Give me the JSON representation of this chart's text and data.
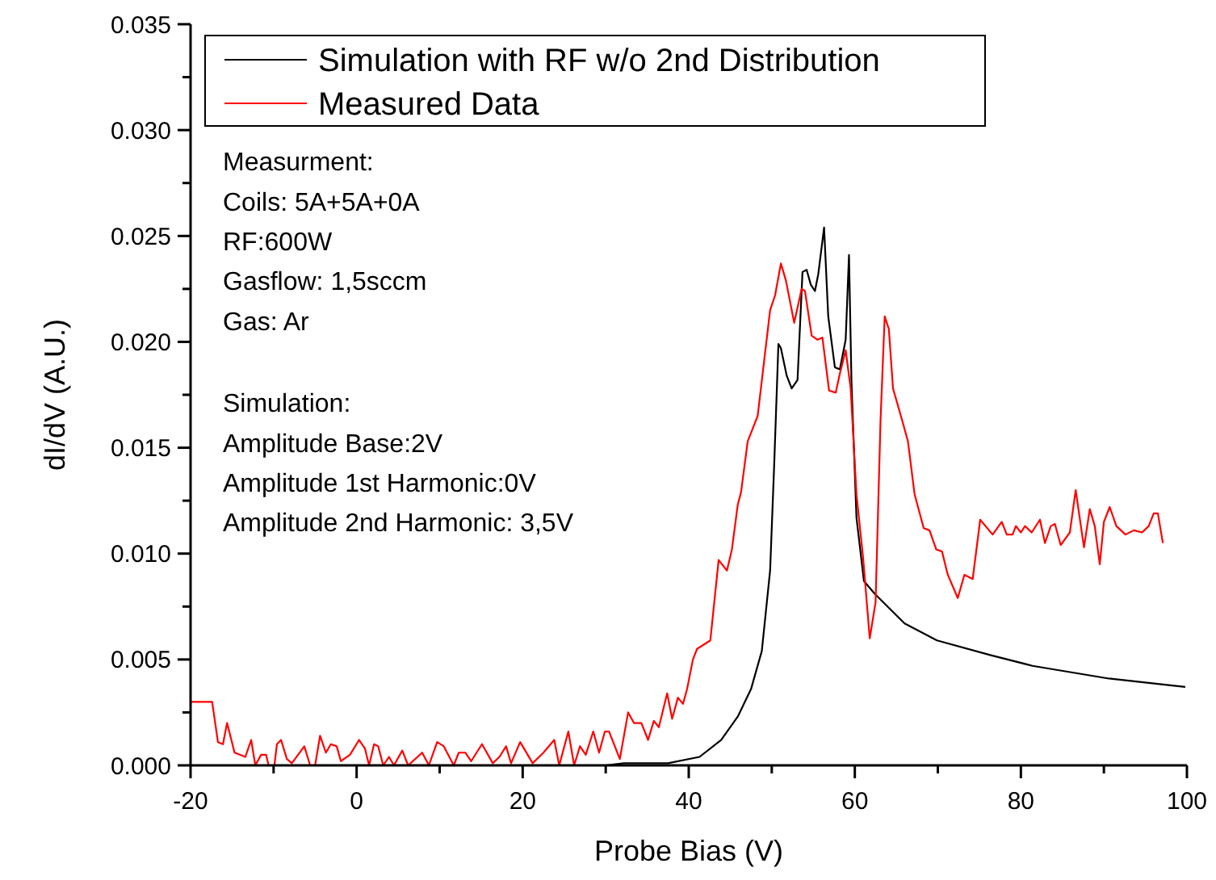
{
  "chart_data": {
    "type": "line",
    "xlabel": "Probe Bias (V)",
    "ylabel": "dI/dV (A.U.)",
    "xlim": [
      -20,
      100
    ],
    "xticks": [
      -20,
      0,
      20,
      40,
      60,
      80,
      100
    ],
    "ylim": [
      0,
      0.035
    ],
    "yticks": [
      {
        "value": 0,
        "label": "0.000"
      },
      {
        "value": 0.005,
        "label": "0.005"
      },
      {
        "value": 0.01,
        "label": "0.010"
      },
      {
        "value": 0.015,
        "label": "0.015"
      },
      {
        "value": 0.02,
        "label": "0.020"
      },
      {
        "value": 0.025,
        "label": "0.025"
      },
      {
        "value": 0.03,
        "label": "0.030"
      },
      {
        "value": 0.035,
        "label": "0.035"
      }
    ],
    "grid": false,
    "legend": "top left",
    "marker": "none",
    "line_style": "solid",
    "annotations": [
      "Measurment:\nCoils: 5A+5A+0A\nRF:600W\nGasflow: 1,5sccm\nGas: Ar",
      "Simulation:\nAmplitude Base:2V\nAmplitude 1st Harmonic:0V\nAmplitude 2nd Harmonic: 3,5V"
    ],
    "series": [
      {
        "name": "Simulation with RF w/o 2nd Distribution",
        "color": "#000000",
        "x": [
          -20,
          0,
          20,
          30,
          32.2,
          37.5,
          41.3,
          43.9,
          45.9,
          47.5,
          48.8,
          49.8,
          50.3,
          50.8,
          51.1,
          51.8,
          52.4,
          53.1,
          53.7,
          54.2,
          54.7,
          55.2,
          55.6,
          56.3,
          56.8,
          57.6,
          58.2,
          58.9,
          59.3,
          59.6,
          60.2,
          61.1,
          62.4,
          66,
          69.9,
          76.4,
          81.4,
          90.6,
          99.8
        ],
        "values": [
          0,
          0,
          0,
          0,
          0.0001,
          0.0001,
          0.0004,
          0.0012,
          0.0023,
          0.0036,
          0.0054,
          0.0092,
          0.0143,
          0.0199,
          0.0197,
          0.0184,
          0.0178,
          0.0182,
          0.0233,
          0.0234,
          0.0227,
          0.0224,
          0.0232,
          0.0254,
          0.0212,
          0.0188,
          0.0187,
          0.0201,
          0.0241,
          0.0181,
          0.0117,
          0.0087,
          0.0081,
          0.0067,
          0.0059,
          0.0052,
          0.0047,
          0.0041,
          0.0037
        ]
      },
      {
        "name": "Measured Data",
        "color": "#ff0000",
        "x": [
          -20,
          -18,
          -17.4,
          -16.7,
          -16.1,
          -15.6,
          -14.7,
          -13.4,
          -12.7,
          -12.2,
          -11.5,
          -10.9,
          -10.6,
          -9.9,
          -9.6,
          -9.1,
          -8.4,
          -7.8,
          -6.3,
          -5.6,
          -5,
          -4.4,
          -3.7,
          -3.1,
          -2.4,
          -1.9,
          -0.8,
          0.3,
          1,
          1.5,
          2.1,
          2.6,
          3.2,
          3.9,
          4.5,
          5.5,
          6.2,
          7.9,
          8.7,
          9.7,
          10.5,
          11.7,
          12.3,
          13.1,
          13.8,
          15.1,
          16.4,
          17.2,
          18,
          18.6,
          19.7,
          21.2,
          22.5,
          23.8,
          24.4,
          25.5,
          26.2,
          26.9,
          27.6,
          28.5,
          29.2,
          29.9,
          30.4,
          31.7,
          32.7,
          33.4,
          34.3,
          35.1,
          35.8,
          36.4,
          37.4,
          38,
          38.7,
          39.3,
          39.8,
          40.5,
          41,
          42.6,
          43.6,
          44.6,
          45.2,
          45.9,
          46.3,
          47.1,
          48,
          48.3,
          49.8,
          50.4,
          51.1,
          51.7,
          52.7,
          53.6,
          54,
          54.8,
          55.5,
          56.1,
          56.9,
          57.7,
          58.2,
          58.9,
          59.5,
          60.2,
          61,
          61.8,
          62.5,
          63.1,
          63.6,
          64.1,
          64.6,
          65.7,
          66.4,
          67.2,
          68.3,
          69,
          69.8,
          70.5,
          71.2,
          72.4,
          73.2,
          74.2,
          75.1,
          76.6,
          77.7,
          78.3,
          79,
          79.4,
          80,
          80.5,
          81.3,
          82.3,
          82.9,
          83.6,
          84.1,
          84.8,
          85.9,
          86.6,
          87.6,
          88.3,
          88.9,
          89.5,
          90,
          90.7,
          91.5,
          92.6,
          93.6,
          94.6,
          95.4,
          96,
          96.5,
          97.1
        ],
        "values": [
          0.003,
          0.003,
          0.003,
          0.0011,
          0.001,
          0.002,
          0.0006,
          0.0004,
          0.0012,
          0,
          0.0005,
          0.0005,
          0,
          0,
          0.001,
          0.0012,
          0.0003,
          0.0001,
          0.0009,
          0,
          0,
          0.0014,
          0.0006,
          0.001,
          0.0009,
          0.0002,
          0.0005,
          0.0012,
          0.0008,
          0,
          0.001,
          0.0009,
          0,
          0.0004,
          0,
          0.0007,
          0,
          0.0006,
          0,
          0.0011,
          0.0009,
          0,
          0.0006,
          0.0006,
          0.0002,
          0.001,
          0.0001,
          0.0004,
          0.0009,
          0.0001,
          0.0011,
          0.0001,
          0.0006,
          0.0012,
          0,
          0.0016,
          0,
          0.0009,
          0.0005,
          0.0016,
          0.0006,
          0.0016,
          0.0016,
          0.0003,
          0.0025,
          0.002,
          0.002,
          0.0012,
          0.0021,
          0.0018,
          0.0034,
          0.0022,
          0.0032,
          0.0029,
          0.0036,
          0.005,
          0.0055,
          0.0059,
          0.0097,
          0.0092,
          0.0102,
          0.0123,
          0.0129,
          0.0153,
          0.0162,
          0.0165,
          0.0215,
          0.0222,
          0.0237,
          0.0229,
          0.0209,
          0.0225,
          0.0224,
          0.0203,
          0.0201,
          0.0202,
          0.0177,
          0.0176,
          0.0185,
          0.0196,
          0.0178,
          0.0128,
          0.0098,
          0.006,
          0.0077,
          0.0163,
          0.0212,
          0.0206,
          0.0178,
          0.0163,
          0.0153,
          0.0128,
          0.0112,
          0.0111,
          0.0102,
          0.0101,
          0.009,
          0.0079,
          0.009,
          0.0088,
          0.0116,
          0.0109,
          0.0115,
          0.0109,
          0.0109,
          0.0113,
          0.011,
          0.0113,
          0.011,
          0.0116,
          0.0105,
          0.0113,
          0.0114,
          0.0104,
          0.011,
          0.013,
          0.0103,
          0.0121,
          0.0113,
          0.0095,
          0.0115,
          0.0122,
          0.0113,
          0.0109,
          0.0111,
          0.011,
          0.0113,
          0.0119,
          0.0119,
          0.0105
        ]
      }
    ]
  }
}
